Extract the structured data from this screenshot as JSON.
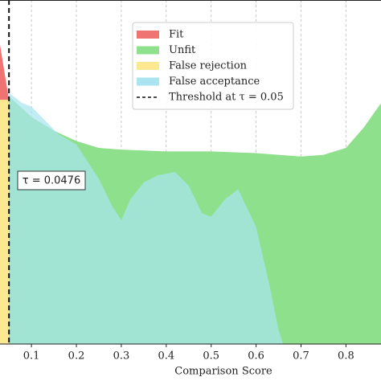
{
  "chart_data": {
    "type": "area",
    "xlabel": "Comparison Score",
    "xlim": [
      0.03,
      0.878
    ],
    "ylim": [
      0,
      1
    ],
    "xticks": [
      0.1,
      0.2,
      0.3,
      0.4,
      0.5,
      0.6,
      0.7,
      0.8
    ],
    "grid": true,
    "threshold": 0.05,
    "threshold_label": "Threshold at τ = 0.05",
    "annotation": "τ = 0.0476",
    "series": [
      {
        "name": "Fit",
        "color": "#f07373",
        "x": [
          0.03,
          0.05
        ],
        "values": [
          0.87,
          0.71
        ]
      },
      {
        "name": "Unfit",
        "color": "#8fe08c",
        "x": [
          0.05,
          0.1,
          0.15,
          0.2,
          0.25,
          0.3,
          0.4,
          0.5,
          0.6,
          0.7,
          0.75,
          0.8,
          0.84,
          0.878
        ],
        "values": [
          0.72,
          0.66,
          0.62,
          0.59,
          0.57,
          0.565,
          0.56,
          0.56,
          0.555,
          0.545,
          0.55,
          0.57,
          0.63,
          0.7
        ]
      },
      {
        "name": "False rejection",
        "color": "#fbe890",
        "x": [
          0.03,
          0.05
        ],
        "values": [
          0.71,
          0.71
        ]
      },
      {
        "name": "False acceptance",
        "color": "#a9e4f0",
        "x": [
          0.05,
          0.08,
          0.1,
          0.13,
          0.16,
          0.2,
          0.25,
          0.28,
          0.3,
          0.32,
          0.35,
          0.38,
          0.42,
          0.45,
          0.48,
          0.5,
          0.53,
          0.56,
          0.6,
          0.63,
          0.65,
          0.66
        ],
        "values": [
          0.73,
          0.7,
          0.69,
          0.65,
          0.61,
          0.58,
          0.48,
          0.4,
          0.36,
          0.42,
          0.47,
          0.49,
          0.5,
          0.46,
          0.38,
          0.37,
          0.42,
          0.45,
          0.34,
          0.17,
          0.04,
          0
        ]
      }
    ]
  }
}
